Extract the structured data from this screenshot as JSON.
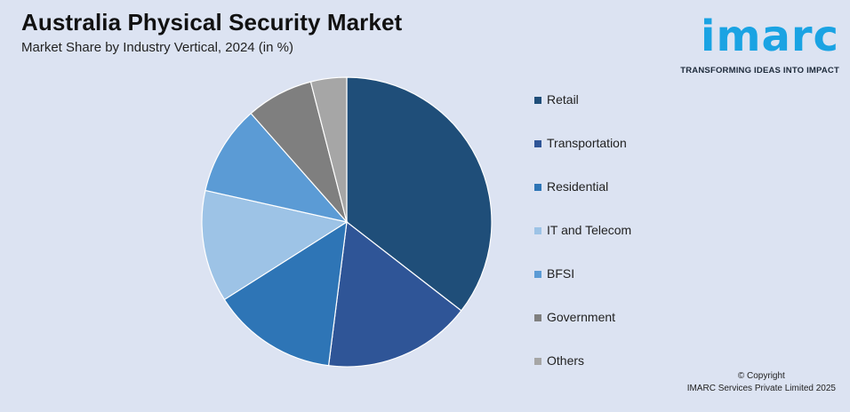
{
  "header": {
    "title": "Australia Physical Security Market",
    "subtitle": "Market Share by Industry Vertical, 2024 (in %)"
  },
  "logo": {
    "word": "imarc",
    "tagline": "TRANSFORMING IDEAS INTO IMPACT",
    "color": "#1aa3e3"
  },
  "chart_data": {
    "type": "pie",
    "title": "Australia Physical Security Market",
    "subtitle": "Market Share by Industry Vertical, 2024 (in %)",
    "legend_position": "right",
    "slices": [
      {
        "label": "Retail",
        "value": 35.5,
        "color": "#1f4e79"
      },
      {
        "label": "Transportation",
        "value": 16.5,
        "color": "#2f5597"
      },
      {
        "label": "Residential",
        "value": 14.0,
        "color": "#2e75b6"
      },
      {
        "label": "IT and Telecom",
        "value": 12.5,
        "color": "#9dc3e6"
      },
      {
        "label": "BFSI",
        "value": 10.0,
        "color": "#5b9bd5"
      },
      {
        "label": "Government",
        "value": 7.5,
        "color": "#7f7f7f"
      },
      {
        "label": "Others",
        "value": 4.0,
        "color": "#a6a6a6"
      }
    ]
  },
  "footer": {
    "copyright_line1": "© Copyright",
    "copyright_line2": "IMARC Services Private Limited 2025"
  }
}
